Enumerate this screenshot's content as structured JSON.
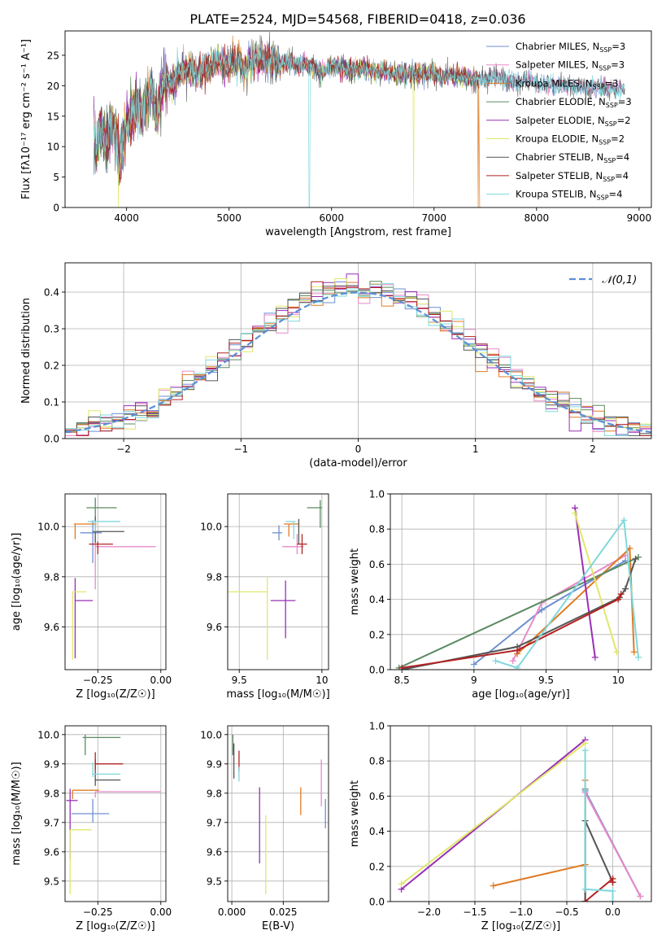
{
  "title": "PLATE=2524, MJD=54568, FIBERID=0418, z=0.036",
  "models": [
    {
      "name": "Chabrier MILES",
      "nssp": "3",
      "color": "#6f8fd0"
    },
    {
      "name": "Salpeter MILES",
      "nssp": "3",
      "color": "#e88ac8"
    },
    {
      "name": "Kroupa MILES",
      "nssp": "3",
      "color": "#e07b24"
    },
    {
      "name": "Chabrier ELODIE",
      "nssp": "3",
      "color": "#5a8a60"
    },
    {
      "name": "Salpeter ELODIE",
      "nssp": "2",
      "color": "#9a2fb5"
    },
    {
      "name": "Kroupa ELODIE",
      "nssp": "2",
      "color": "#dfe86a"
    },
    {
      "name": "Chabrier STELIB",
      "nssp": "4",
      "color": "#555555"
    },
    {
      "name": "Salpeter STELIB",
      "nssp": "4",
      "color": "#b22222"
    },
    {
      "name": "Kroupa STELIB",
      "nssp": "4",
      "color": "#7fd8dc"
    }
  ],
  "chart_data": [
    {
      "id": "spectrum",
      "type": "line",
      "xlabel": "wavelength [Angstrom, rest frame]",
      "ylabel": "Flux [fλ10⁻¹⁷ erg cm⁻² s⁻¹ A⁻¹]",
      "xlim": [
        3400,
        9120
      ],
      "ylim": [
        0,
        29
      ],
      "xticks": [
        4000,
        5000,
        6000,
        7000,
        8000,
        9000
      ],
      "yticks": [
        0,
        5,
        10,
        15,
        20,
        25
      ],
      "legend": "top-right",
      "x": [
        3680,
        3700,
        3750,
        3800,
        3850,
        3900,
        3930,
        3960,
        4000,
        4050,
        4100,
        4150,
        4200,
        4250,
        4300,
        4350,
        4400,
        4450,
        4500,
        4600,
        4700,
        4800,
        4900,
        5000,
        5100,
        5150,
        5200,
        5300,
        5400,
        5500,
        5600,
        5700,
        5800,
        5900,
        6000,
        6100,
        6200,
        6300,
        6400,
        6500,
        6600,
        6700,
        6800,
        6900,
        7000,
        7100,
        7200,
        7300,
        7400,
        7500,
        7600,
        7700,
        7800,
        7900,
        8000,
        8200,
        8400,
        8600,
        8800,
        8860
      ],
      "y": [
        12,
        10,
        13,
        11,
        14,
        12,
        8,
        10,
        14,
        15,
        17,
        16,
        18,
        19,
        15,
        20,
        21,
        20,
        22,
        23,
        22,
        23,
        24,
        23.5,
        24,
        22,
        24,
        24.5,
        24,
        23.5,
        24,
        23.5,
        23.5,
        22,
        23.5,
        23,
        22.5,
        23,
        22.5,
        22.5,
        22,
        22,
        22,
        22,
        22,
        21.5,
        21.5,
        21.5,
        21,
        21,
        21.5,
        21,
        20.5,
        21,
        20.5,
        20,
        20,
        19.5,
        19.5,
        19.5
      ],
      "notes": "noisy SDSS spectrum with sky-line spikes down to zero near 3920, 5780, 6800, 7430 Å"
    },
    {
      "id": "residuals",
      "type": "histogram",
      "xlabel": "(data-model)/error",
      "ylabel": "Normed distribution",
      "xlim": [
        -2.5,
        2.5
      ],
      "ylim": [
        0,
        0.48
      ],
      "xticks": [
        -2,
        -1,
        0,
        1,
        2
      ],
      "yticks": [
        0.0,
        0.1,
        0.2,
        0.3,
        0.4
      ],
      "legend": "top-right",
      "legend_label": "𝒩(0,1)",
      "grid": true,
      "bin_width": 0.1
    },
    {
      "id": "age_vs_Z",
      "type": "errorbar",
      "xlabel": "Z [log₁₀(Z/Z☉)]",
      "ylabel": "age  [log₁₀(age/yr)]",
      "xlim": [
        -0.38,
        0.02
      ],
      "ylim": [
        9.43,
        10.13
      ],
      "xticks": [
        -0.25,
        0.0
      ],
      "xticklabels": [
        "−0.25",
        "0.00"
      ],
      "yticks": [
        9.6,
        9.8,
        10.0
      ],
      "grid": true,
      "points": [
        {
          "x": -0.27,
          "y": 9.975,
          "xerr": [
            0.05,
            0.035
          ],
          "yerr": [
            0.12,
            0.05
          ]
        },
        {
          "x": -0.26,
          "y": 9.92,
          "xerr": [
            0.0,
            0.24
          ],
          "yerr": [
            0.17,
            0.04
          ]
        },
        {
          "x": -0.34,
          "y": 10.01,
          "xerr": [
            0.005,
            0.085
          ],
          "yerr": [
            0.06,
            0.0
          ]
        },
        {
          "x": -0.26,
          "y": 10.075,
          "xerr": [
            0.035,
            0.085
          ],
          "yerr": [
            0.05,
            0.04
          ]
        },
        {
          "x": -0.34,
          "y": 9.705,
          "xerr": [
            0.0,
            0.07
          ],
          "yerr": [
            0.23,
            0.09
          ]
        },
        {
          "x": -0.35,
          "y": 9.74,
          "xerr": [
            0.0,
            0.055
          ],
          "yerr": [
            0.27,
            0.0
          ]
        },
        {
          "x": -0.26,
          "y": 9.98,
          "xerr": [
            0.01,
            0.115
          ],
          "yerr": [
            0.045,
            0.06
          ]
        },
        {
          "x": -0.25,
          "y": 9.93,
          "xerr": [
            0.035,
            0.06
          ],
          "yerr": [
            0.04,
            0.01
          ]
        },
        {
          "x": -0.26,
          "y": 10.02,
          "xerr": [
            0.03,
            0.1
          ],
          "yerr": [
            0.04,
            0.0
          ]
        }
      ]
    },
    {
      "id": "age_vs_mass",
      "type": "errorbar",
      "xlabel": "mass [log₁₀(M/M☉)]",
      "ylabel": "",
      "xlim": [
        9.43,
        10.04
      ],
      "ylim": [
        9.43,
        10.13
      ],
      "xticks": [
        9.5,
        10.0
      ],
      "yticks": [
        9.6,
        9.8,
        10.0
      ],
      "grid": true,
      "points": [
        {
          "x": 9.74,
          "y": 9.975,
          "xerr": [
            0.04,
            0.02
          ],
          "yerr": [
            0.03,
            0.03
          ]
        },
        {
          "x": 9.85,
          "y": 9.92,
          "xerr": [
            0.09,
            0.04
          ],
          "yerr": [
            0.03,
            0.05
          ]
        },
        {
          "x": 9.8,
          "y": 10.01,
          "xerr": [
            0.03,
            0.06
          ],
          "yerr": [
            0.05,
            0.0
          ]
        },
        {
          "x": 9.99,
          "y": 10.075,
          "xerr": [
            0.08,
            0.01
          ],
          "yerr": [
            0.08,
            0.03
          ]
        },
        {
          "x": 9.78,
          "y": 9.705,
          "xerr": [
            0.09,
            0.06
          ],
          "yerr": [
            0.15,
            0.08
          ]
        },
        {
          "x": 9.67,
          "y": 9.74,
          "xerr": [
            0.27,
            0.0
          ],
          "yerr": [
            0.27,
            0.06
          ]
        },
        {
          "x": 9.86,
          "y": 9.98,
          "xerr": [
            0.0,
            0.0
          ],
          "yerr": [
            0.05,
            0.05
          ]
        },
        {
          "x": 9.88,
          "y": 9.93,
          "xerr": [
            0.03,
            0.03
          ],
          "yerr": [
            0.04,
            0.04
          ]
        },
        {
          "x": 9.83,
          "y": 10.02,
          "xerr": [
            0.05,
            0.01
          ],
          "yerr": [
            0.07,
            0.0
          ]
        }
      ]
    },
    {
      "id": "weight_vs_age",
      "type": "line",
      "xlabel": "age  [log₁₀(age/yr)]",
      "ylabel": "mass weight",
      "xlim": [
        8.42,
        10.23
      ],
      "ylim": [
        0,
        1.0
      ],
      "xticks": [
        8.5,
        9.0,
        9.5,
        10.0
      ],
      "yticks": [
        0.0,
        0.2,
        0.4,
        0.6,
        0.8,
        1.0
      ],
      "grid": true,
      "series": [
        {
          "model": 0,
          "x": [
            9.0,
            9.47,
            10.05
          ],
          "y": [
            0.03,
            0.34,
            0.62
          ]
        },
        {
          "model": 1,
          "x": [
            9.27,
            9.47,
            10.05
          ],
          "y": [
            0.05,
            0.38,
            0.65
          ]
        },
        {
          "model": 2,
          "x": [
            9.3,
            10.08,
            10.11
          ],
          "y": [
            0.09,
            0.69,
            0.1
          ]
        },
        {
          "model": 3,
          "x": [
            8.48,
            10.14
          ],
          "y": [
            0.01,
            0.64
          ]
        },
        {
          "model": 4,
          "x": [
            9.7,
            9.84
          ],
          "y": [
            0.92,
            0.07
          ]
        },
        {
          "model": 5,
          "x": [
            9.7,
            9.99
          ],
          "y": [
            0.89,
            0.1
          ]
        },
        {
          "model": 6,
          "x": [
            8.5,
            9.3,
            10.01,
            10.05,
            10.12
          ],
          "y": [
            0.0,
            0.13,
            0.41,
            0.46,
            0.63
          ]
        },
        {
          "model": 7,
          "x": [
            8.5,
            9.3,
            10.0,
            10.02
          ],
          "y": [
            0.01,
            0.11,
            0.4,
            0.43
          ]
        },
        {
          "model": 8,
          "x": [
            9.15,
            9.3,
            10.04,
            10.14
          ],
          "y": [
            0.05,
            0.01,
            0.85,
            0.07
          ]
        }
      ]
    },
    {
      "id": "mass_vs_Z",
      "type": "errorbar",
      "xlabel": "Z [log₁₀(Z/Z☉)]",
      "ylabel": "mass [log₁₀(M/M☉)]",
      "xlim": [
        -0.38,
        0.02
      ],
      "ylim": [
        9.43,
        10.03
      ],
      "xticks": [
        -0.25,
        0.0
      ],
      "xticklabels": [
        "−0.25",
        "0.00"
      ],
      "yticks": [
        9.5,
        9.6,
        9.7,
        9.8,
        9.9,
        10.0
      ],
      "grid": true,
      "points": [
        {
          "x": -0.27,
          "y": 9.73,
          "xerr": [
            0.085,
            0.065
          ],
          "yerr": [
            0.03,
            0.05
          ]
        },
        {
          "x": -0.26,
          "y": 9.805,
          "xerr": [
            0.0,
            0.26
          ],
          "yerr": [
            0.02,
            0.0
          ]
        },
        {
          "x": -0.35,
          "y": 9.81,
          "xerr": [
            0.0,
            0.105
          ],
          "yerr": [
            0.03,
            0.0
          ]
        },
        {
          "x": -0.3,
          "y": 9.99,
          "xerr": [
            0.01,
            0.14
          ],
          "yerr": [
            0.06,
            0.01
          ]
        },
        {
          "x": -0.36,
          "y": 9.775,
          "xerr": [
            0.015,
            0.03
          ],
          "yerr": [
            0.2,
            0.04
          ]
        },
        {
          "x": -0.36,
          "y": 9.675,
          "xerr": [
            0.0,
            0.085
          ],
          "yerr": [
            0.22,
            0.0
          ]
        },
        {
          "x": -0.26,
          "y": 9.845,
          "xerr": [
            0.0,
            0.1
          ],
          "yerr": [
            0.02,
            0.07
          ]
        },
        {
          "x": -0.26,
          "y": 9.9,
          "xerr": [
            0.0,
            0.11
          ],
          "yerr": [
            0.02,
            0.04
          ]
        },
        {
          "x": -0.27,
          "y": 9.865,
          "xerr": [
            0.0,
            0.11
          ],
          "yerr": [
            0.01,
            0.04
          ]
        }
      ]
    },
    {
      "id": "mass_vs_ebv",
      "type": "errorbar",
      "xlabel": "E(B-V)",
      "ylabel": "",
      "xlim": [
        -0.002,
        0.047
      ],
      "ylim": [
        9.43,
        10.03
      ],
      "xticks": [
        0.0,
        0.025
      ],
      "xticklabels": [
        "0.000",
        "0.025"
      ],
      "yticks": [
        9.5,
        9.6,
        9.7,
        9.8,
        9.9,
        10.0
      ],
      "grid": true,
      "points": [
        {
          "x": 0.0455,
          "y": 9.73,
          "yerr": [
            0.05,
            0.05
          ]
        },
        {
          "x": 0.0435,
          "y": 9.805,
          "yerr": [
            0.05,
            0.11
          ]
        },
        {
          "x": 0.0335,
          "y": 9.775,
          "yerr": [
            0.05,
            0.045
          ]
        },
        {
          "x": 0.0005,
          "y": 9.98,
          "yerr": [
            0.05,
            0.02
          ]
        },
        {
          "x": 0.0135,
          "y": 9.72,
          "yerr": [
            0.16,
            0.1
          ]
        },
        {
          "x": 0.0165,
          "y": 9.625,
          "yerr": [
            0.17,
            0.1
          ]
        },
        {
          "x": 0.001,
          "y": 9.9,
          "yerr": [
            0.05,
            0.07
          ]
        },
        {
          "x": 0.0035,
          "y": 9.905,
          "yerr": [
            0.03,
            0.04
          ]
        },
        {
          "x": 0.0035,
          "y": 9.87,
          "yerr": [
            0.03,
            0.02
          ]
        }
      ]
    },
    {
      "id": "weight_vs_Z",
      "type": "line",
      "xlabel": "Z [log₁₀(Z/Z☉)]",
      "ylabel": "mass weight",
      "xlim": [
        -2.42,
        0.42
      ],
      "ylim": [
        0,
        1.0
      ],
      "xticks": [
        -2.0,
        -1.5,
        -1.0,
        -0.5,
        0.0
      ],
      "xticklabels": [
        "−2.0",
        "−1.5",
        "−1.0",
        "−0.5",
        "0.0"
      ],
      "yticks": [
        0.0,
        0.2,
        0.4,
        0.6,
        0.8,
        1.0
      ],
      "grid": true,
      "series": [
        {
          "model": 0,
          "x": [
            -0.3,
            -0.3,
            0.3
          ],
          "y": [
            0.0,
            0.63,
            0.03
          ]
        },
        {
          "model": 1,
          "x": [
            -0.3,
            -0.3,
            0.3
          ],
          "y": [
            0.0,
            0.62,
            0.03
          ]
        },
        {
          "model": 2,
          "x": [
            -1.3,
            -0.3,
            -0.3
          ],
          "y": [
            0.09,
            0.21,
            0.69
          ]
        },
        {
          "model": 3,
          "x": [
            -0.3,
            -0.3
          ],
          "y": [
            0.0,
            0.64
          ]
        },
        {
          "model": 4,
          "x": [
            -2.3,
            -0.3
          ],
          "y": [
            0.07,
            0.92
          ]
        },
        {
          "model": 5,
          "x": [
            -2.3,
            -0.3
          ],
          "y": [
            0.1,
            0.9
          ]
        },
        {
          "model": 6,
          "x": [
            -0.3,
            -0.3,
            0.0,
            0.0
          ],
          "y": [
            0.0,
            0.46,
            0.11,
            0.11
          ]
        },
        {
          "model": 7,
          "x": [
            -0.3,
            0.0,
            0.0
          ],
          "y": [
            0.0,
            0.13,
            0.11
          ]
        },
        {
          "model": 8,
          "x": [
            -0.3,
            -0.3,
            0.0,
            0.0
          ],
          "y": [
            0.86,
            0.07,
            0.06,
            0.0
          ]
        }
      ]
    }
  ]
}
